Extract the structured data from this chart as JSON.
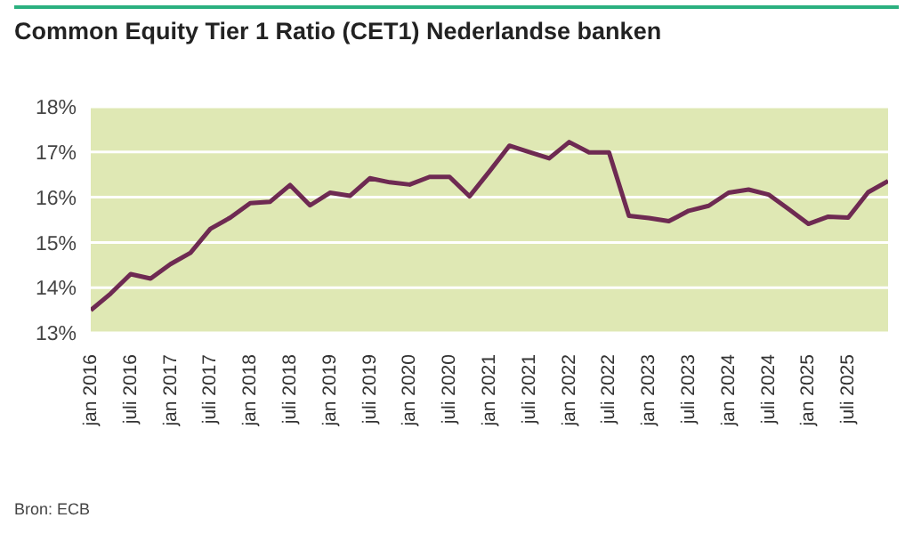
{
  "chart_data": {
    "type": "line",
    "title": "Common Equity Tier 1 Ratio (CET1) Nederlandse banken",
    "x": [
      "2016-01",
      "2016-04",
      "2016-07",
      "2016-10",
      "2017-01",
      "2017-04",
      "2017-07",
      "2017-10",
      "2018-01",
      "2018-04",
      "2018-07",
      "2018-10",
      "2019-01",
      "2019-04",
      "2019-07",
      "2019-10",
      "2020-01",
      "2020-04",
      "2020-07",
      "2020-10",
      "2021-01",
      "2021-04",
      "2021-07",
      "2021-10",
      "2022-01",
      "2022-04",
      "2022-07",
      "2022-10",
      "2023-01",
      "2023-04",
      "2023-07",
      "2023-10",
      "2024-01",
      "2024-04",
      "2024-07",
      "2024-10",
      "2025-01",
      "2025-04",
      "2025-07",
      "2025-10",
      "2026-01"
    ],
    "series": [
      {
        "color": "#6e2a52",
        "values": [
          13.5,
          13.87,
          14.3,
          14.2,
          14.52,
          14.77,
          15.3,
          15.55,
          15.87,
          15.9,
          16.27,
          15.82,
          16.1,
          16.03,
          16.42,
          16.33,
          16.28,
          16.45,
          16.45,
          16.02,
          16.57,
          17.14,
          17.0,
          16.86,
          17.22,
          16.99,
          16.99,
          15.59,
          15.54,
          15.47,
          15.7,
          15.81,
          16.1,
          16.17,
          16.06,
          15.74,
          15.41,
          15.57,
          15.55,
          16.11,
          16.36
        ]
      }
    ],
    "xlim": [
      "2016-01",
      "2026-01"
    ],
    "xticks": [
      {
        "value": "2016-01",
        "label": "jan 2016"
      },
      {
        "value": "2016-07",
        "label": "juli 2016"
      },
      {
        "value": "2017-01",
        "label": "jan 2017"
      },
      {
        "value": "2017-07",
        "label": "juli 2017"
      },
      {
        "value": "2018-01",
        "label": "jan 2018"
      },
      {
        "value": "2018-07",
        "label": "juli 2018"
      },
      {
        "value": "2019-01",
        "label": "jan 2019"
      },
      {
        "value": "2019-07",
        "label": "juli 2019"
      },
      {
        "value": "2020-01",
        "label": "jan 2020"
      },
      {
        "value": "2020-07",
        "label": "juli 2020"
      },
      {
        "value": "2021-01",
        "label": "jan 2021"
      },
      {
        "value": "2021-07",
        "label": "juli 2021"
      },
      {
        "value": "2022-01",
        "label": "jan 2022"
      },
      {
        "value": "2022-07",
        "label": "juli 2022"
      },
      {
        "value": "2023-01",
        "label": "jan 2023"
      },
      {
        "value": "2023-07",
        "label": "juli 2023"
      },
      {
        "value": "2024-01",
        "label": "jan 2024"
      },
      {
        "value": "2024-07",
        "label": "juli 2024"
      },
      {
        "value": "2025-01",
        "label": "jan 2025"
      },
      {
        "value": "2025-07",
        "label": "juli 2025"
      }
    ],
    "ylim": [
      13,
      18
    ],
    "yticks": [
      {
        "value": 13,
        "label": "13%"
      },
      {
        "value": 14,
        "label": "14%"
      },
      {
        "value": 15,
        "label": "15%"
      },
      {
        "value": 16,
        "label": "16%"
      },
      {
        "value": 17,
        "label": "17%"
      },
      {
        "value": 18,
        "label": "18%"
      }
    ],
    "grid": "y",
    "legend": false,
    "marker": "none",
    "line_style": "solid",
    "annotations": [
      "Bron: ECB"
    ]
  }
}
